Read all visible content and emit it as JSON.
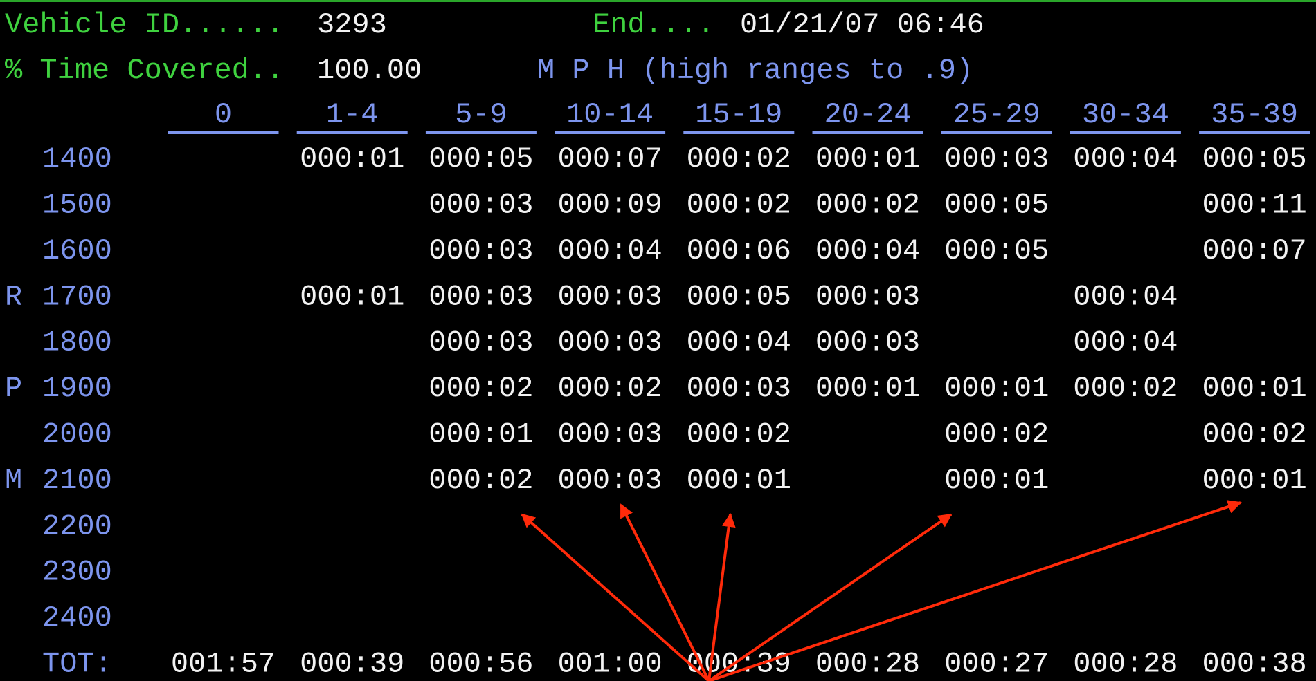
{
  "header": {
    "vehicle_id_label": "Vehicle ID......",
    "vehicle_id": "3293",
    "end_label": "End....",
    "end": "01/21/07 06:46",
    "time_label": "% Time Covered..",
    "time": "100.00",
    "mph": "M P H (high ranges to .9)"
  },
  "table": {
    "columns": [
      "0",
      "1-4",
      "5-9",
      "10-14",
      "15-19",
      "20-24",
      "25-29",
      "30-34",
      "35-39"
    ],
    "rows": [
      {
        "label": "1400",
        "cells": [
          null,
          "000:01",
          "000:05",
          "000:07",
          "000:02",
          "000:01",
          "000:03",
          "000:04",
          "000:05"
        ]
      },
      {
        "label": "1500",
        "cells": [
          null,
          null,
          "000:03",
          "000:09",
          "000:02",
          "000:02",
          "000:05",
          null,
          "000:11"
        ]
      },
      {
        "label": "1600",
        "cells": [
          null,
          null,
          "000:03",
          "000:04",
          "000:06",
          "000:04",
          "000:05",
          null,
          "000:07"
        ]
      },
      {
        "side": "R",
        "label": "1700",
        "cells": [
          null,
          "000:01",
          "000:03",
          "000:03",
          "000:05",
          "000:03",
          null,
          "000:04",
          null
        ]
      },
      {
        "label": "1800",
        "cells": [
          null,
          null,
          "000:03",
          "000:03",
          "000:04",
          "000:03",
          null,
          "000:04",
          null
        ]
      },
      {
        "side": "P",
        "label": "1900",
        "cells": [
          null,
          null,
          "000:02",
          "000:02",
          "000:03",
          "000:01",
          "000:01",
          "000:02",
          "000:01"
        ]
      },
      {
        "label": "2000",
        "cells": [
          null,
          null,
          "000:01",
          "000:03",
          "000:02",
          null,
          "000:02",
          null,
          "000:02"
        ]
      },
      {
        "side": "M",
        "label": "2100",
        "cells": [
          null,
          null,
          "000:02",
          "000:03",
          "000:01",
          null,
          "000:01",
          null,
          "000:01"
        ]
      },
      {
        "label": "2200",
        "cells": [
          null,
          null,
          null,
          null,
          null,
          null,
          null,
          null,
          null
        ]
      },
      {
        "label": "2300",
        "cells": [
          null,
          null,
          null,
          null,
          null,
          null,
          null,
          null,
          null
        ]
      },
      {
        "label": "2400",
        "cells": [
          null,
          null,
          null,
          null,
          null,
          null,
          null,
          null,
          null
        ]
      }
    ],
    "total_label": "TOT:",
    "totals": [
      "001:57",
      "000:39",
      "000:56",
      "001:00",
      "000:39",
      "000:28",
      "000:27",
      "000:28",
      "000:38"
    ]
  }
}
